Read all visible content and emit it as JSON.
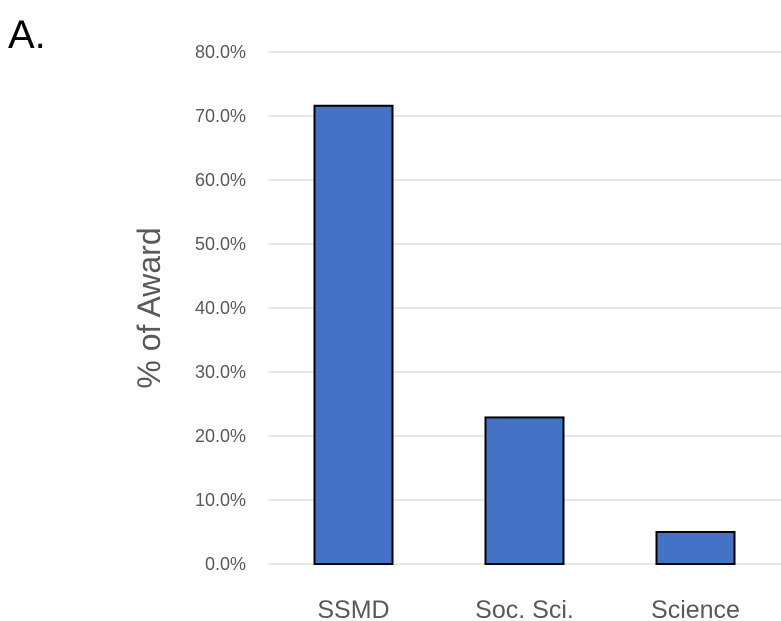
{
  "panel_label": "A.",
  "chart_data": {
    "type": "bar",
    "categories": [
      "SSMD",
      "Soc. Sci.",
      "Science"
    ],
    "values": [
      71.6,
      22.9,
      5.0
    ],
    "ylabel": "% of Award",
    "xlabel": "",
    "ylim": [
      0,
      80
    ],
    "yticks": [
      0,
      10,
      20,
      30,
      40,
      50,
      60,
      70,
      80
    ],
    "ytick_labels": [
      "0.0%",
      "10.0%",
      "20.0%",
      "30.0%",
      "40.0%",
      "50.0%",
      "60.0%",
      "70.0%",
      "80.0%"
    ],
    "grid": true,
    "legend": "none",
    "bar_color": "#4472c4"
  }
}
